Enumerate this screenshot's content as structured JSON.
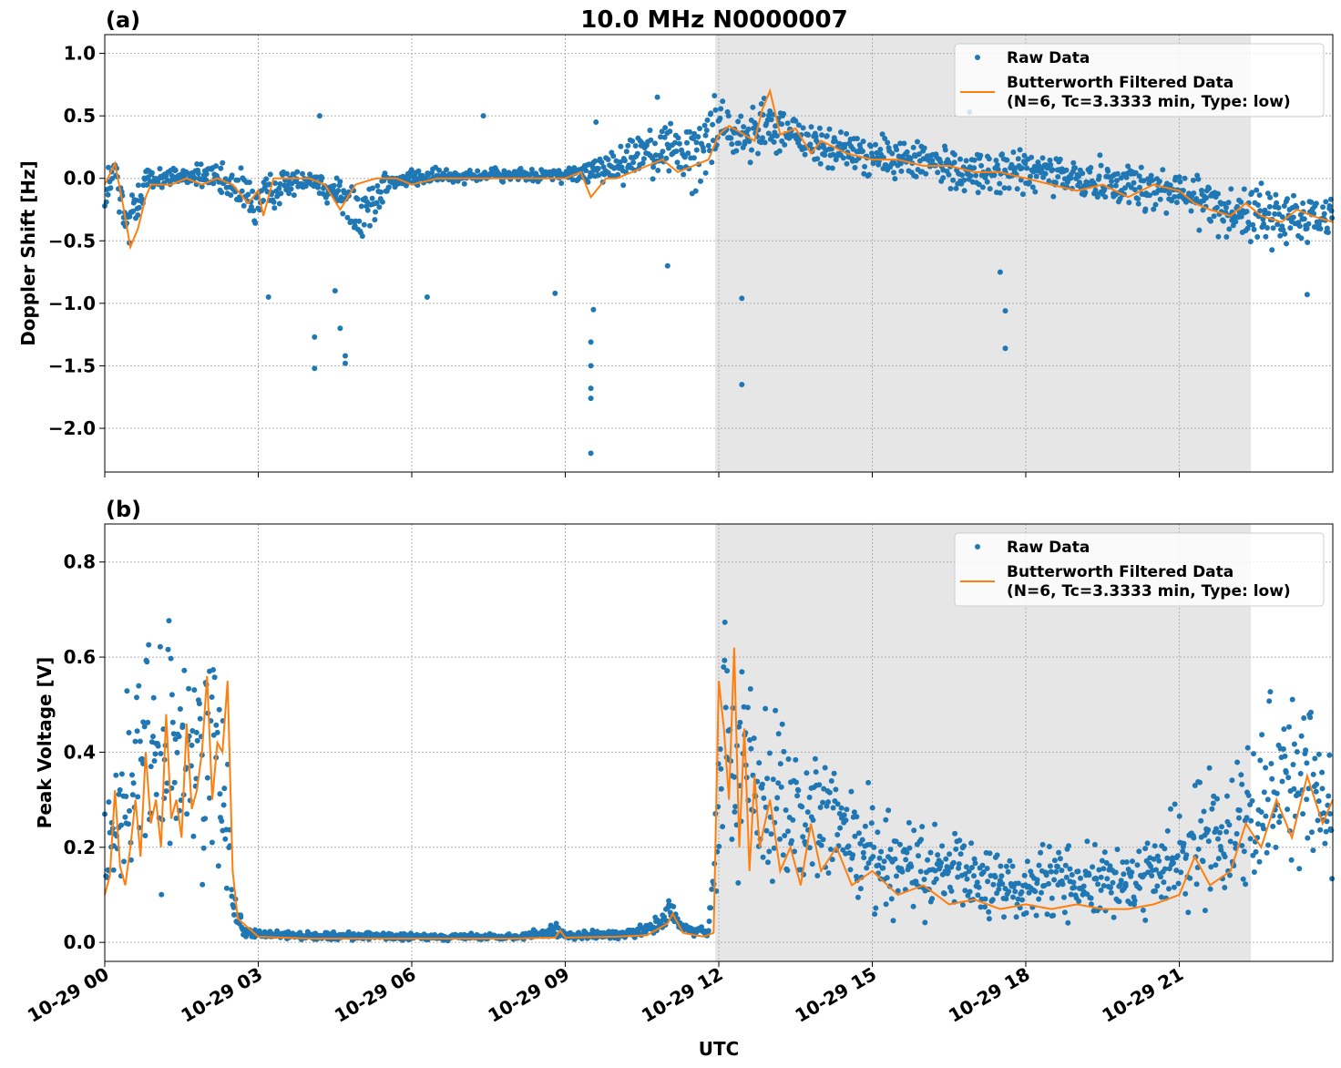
{
  "figure": {
    "title": "10.0 MHz N0000007",
    "xlabel": "UTC"
  },
  "colors": {
    "raw": "#1f77b4",
    "filtered": "#ff7f0e",
    "shade": "#e6e6e6",
    "grid": "#b0b0b0"
  },
  "chart_data": [
    {
      "type": "scatter",
      "panel_label": "(a)",
      "ylabel": "Doppler Shift [Hz]",
      "xlim": [
        0,
        24
      ],
      "ylim": [
        -2.35,
        1.15
      ],
      "yticks": [
        1.0,
        0.5,
        0.0,
        -0.5,
        -1.0,
        -1.5,
        -2.0
      ],
      "ytick_labels": [
        "1.0",
        "0.5",
        "0.0",
        "−0.5",
        "−1.0",
        "−1.5",
        "−2.0"
      ],
      "shaded_interval_hours": [
        11.93,
        22.4
      ],
      "grid": true,
      "legend_position": "top-right",
      "legend": [
        "Raw Data",
        "Butterworth Filtered Data",
        "(N=6, Tc=3.3333 min, Type: low)"
      ],
      "series": [
        {
          "name": "Raw Data",
          "style": "dots",
          "band_x_hours": [
            0,
            0.2,
            0.4,
            0.6,
            0.8,
            1.0,
            1.5,
            2.0,
            2.5,
            3.0,
            3.5,
            4.0,
            4.5,
            5.0,
            5.5,
            6.0,
            7.0,
            8.0,
            9.0,
            9.5,
            10.0,
            10.5,
            11.0,
            11.5,
            12.0,
            12.5,
            13.0,
            13.5,
            14.0,
            15.0,
            16.0,
            17.0,
            18.0,
            19.0,
            20.0,
            21.0,
            22.0,
            23.0,
            24.0
          ],
          "band_low": [
            -0.5,
            -0.1,
            -0.8,
            -0.5,
            -0.2,
            -0.1,
            -0.1,
            -0.1,
            -0.3,
            -0.5,
            -0.2,
            -0.1,
            -0.3,
            -0.7,
            -0.2,
            -0.1,
            -0.05,
            -0.05,
            -0.05,
            -0.1,
            -0.1,
            -0.05,
            -0.1,
            -0.25,
            0.1,
            0.1,
            0.1,
            0.1,
            0.0,
            -0.05,
            -0.1,
            -0.2,
            -0.2,
            -0.25,
            -0.3,
            -0.4,
            -0.55,
            -0.65,
            -0.6
          ],
          "band_high": [
            0.2,
            0.25,
            0.0,
            0.1,
            0.15,
            0.1,
            0.15,
            0.15,
            0.15,
            0.1,
            0.1,
            0.1,
            0.1,
            0.1,
            0.1,
            0.1,
            0.1,
            0.1,
            0.1,
            0.2,
            0.3,
            0.5,
            0.6,
            0.6,
            0.8,
            0.55,
            0.8,
            0.6,
            0.5,
            0.4,
            0.35,
            0.3,
            0.3,
            0.25,
            0.2,
            0.15,
            0.05,
            0.0,
            0.0
          ],
          "outliers": [
            [
              4.1,
              -1.52
            ],
            [
              4.1,
              -1.27
            ],
            [
              4.2,
              0.5
            ],
            [
              4.6,
              -1.2
            ],
            [
              4.7,
              -1.42
            ],
            [
              4.7,
              -1.48
            ],
            [
              4.5,
              -0.9
            ],
            [
              3.2,
              -0.95
            ],
            [
              6.3,
              -0.95
            ],
            [
              7.4,
              0.5
            ],
            [
              8.8,
              -0.92
            ],
            [
              9.5,
              -2.2
            ],
            [
              9.5,
              -1.76
            ],
            [
              9.5,
              -1.68
            ],
            [
              9.5,
              -1.5
            ],
            [
              9.5,
              -1.31
            ],
            [
              9.55,
              -1.05
            ],
            [
              9.6,
              0.45
            ],
            [
              12.45,
              -0.96
            ],
            [
              12.45,
              -1.65
            ],
            [
              17.6,
              -1.36
            ],
            [
              17.6,
              -1.06
            ],
            [
              17.5,
              -0.75
            ],
            [
              16.9,
              0.53
            ],
            [
              23.5,
              -0.93
            ],
            [
              11.0,
              -0.7
            ],
            [
              10.8,
              0.65
            ]
          ]
        },
        {
          "name": "Butterworth Filtered Data",
          "style": "line",
          "x_hours": [
            0,
            0.2,
            0.35,
            0.5,
            0.65,
            0.8,
            0.9,
            1.0,
            1.3,
            1.6,
            1.9,
            2.2,
            2.5,
            2.8,
            3.0,
            3.1,
            3.3,
            3.6,
            4.0,
            4.3,
            4.6,
            4.9,
            5.3,
            5.7,
            6.0,
            6.5,
            7.0,
            7.5,
            8.0,
            8.5,
            9.0,
            9.3,
            9.5,
            9.8,
            10.0,
            10.3,
            10.6,
            10.9,
            11.2,
            11.5,
            11.8,
            12.0,
            12.2,
            12.5,
            12.7,
            12.85,
            13.0,
            13.2,
            13.5,
            13.8,
            14.0,
            14.5,
            15.0,
            15.5,
            16.0,
            16.5,
            17.0,
            17.5,
            18.0,
            18.5,
            19.0,
            19.5,
            20.0,
            20.5,
            21.0,
            21.3,
            21.6,
            22.0,
            22.3,
            22.6,
            23.0,
            23.3,
            23.6,
            24.0
          ],
          "y": [
            -0.05,
            0.12,
            -0.2,
            -0.55,
            -0.4,
            -0.15,
            -0.05,
            -0.05,
            -0.05,
            0.0,
            -0.05,
            0.0,
            -0.05,
            -0.2,
            -0.1,
            -0.3,
            0.0,
            0.0,
            0.0,
            -0.05,
            -0.25,
            -0.05,
            0.0,
            0.0,
            -0.05,
            0.0,
            0.0,
            0.0,
            0.0,
            0.0,
            0.0,
            0.05,
            -0.15,
            0.0,
            0.0,
            0.05,
            0.1,
            0.15,
            0.05,
            0.1,
            0.15,
            0.35,
            0.42,
            0.35,
            0.3,
            0.55,
            0.7,
            0.35,
            0.4,
            0.2,
            0.3,
            0.2,
            0.15,
            0.15,
            0.1,
            0.1,
            0.05,
            0.05,
            0.0,
            -0.05,
            -0.1,
            -0.05,
            -0.15,
            -0.05,
            -0.1,
            -0.2,
            -0.25,
            -0.3,
            -0.2,
            -0.3,
            -0.35,
            -0.25,
            -0.3,
            -0.35
          ]
        }
      ]
    },
    {
      "type": "scatter",
      "panel_label": "(b)",
      "ylabel": "Peak Voltage [V]",
      "xlim": [
        0,
        24
      ],
      "ylim": [
        -0.04,
        0.88
      ],
      "yticks": [
        0.0,
        0.2,
        0.4,
        0.6,
        0.8
      ],
      "ytick_labels": [
        "0.0",
        "0.2",
        "0.4",
        "0.6",
        "0.8"
      ],
      "xticks_hours": [
        0,
        3,
        6,
        9,
        12,
        15,
        18,
        21
      ],
      "xtick_labels": [
        "10-29 00",
        "10-29 03",
        "10-29 06",
        "10-29 09",
        "10-29 12",
        "10-29 15",
        "10-29 18",
        "10-29 21"
      ],
      "shaded_interval_hours": [
        11.93,
        22.4
      ],
      "grid": true,
      "legend_position": "top-right",
      "legend": [
        "Raw Data",
        "Butterworth Filtered Data",
        "(N=6, Tc=3.3333 min, Type: low)"
      ],
      "series": [
        {
          "name": "Raw Data",
          "style": "dots",
          "band_x_hours": [
            0,
            0.3,
            0.6,
            0.8,
            1.0,
            1.2,
            1.4,
            1.6,
            1.8,
            2.0,
            2.2,
            2.4,
            2.5,
            2.7,
            3.0,
            4.0,
            5.0,
            6.0,
            7.0,
            8.0,
            8.8,
            9.0,
            10.0,
            10.8,
            11.0,
            11.3,
            11.8,
            11.95,
            12.1,
            12.3,
            12.6,
            13.0,
            13.5,
            14.0,
            14.5,
            15.0,
            16.0,
            17.0,
            18.0,
            19.0,
            20.0,
            20.8,
            21.2,
            21.6,
            22.0,
            22.4,
            22.8,
            23.2,
            23.6,
            24.0
          ],
          "band_low": [
            0.03,
            0.05,
            0.06,
            0.08,
            0.06,
            0.07,
            0.05,
            0.07,
            0.08,
            0.06,
            0.05,
            0.05,
            0.02,
            0.01,
            0.005,
            0.002,
            0.002,
            0.002,
            0.002,
            0.002,
            0.005,
            0.002,
            0.002,
            0.01,
            0.02,
            0.01,
            0.005,
            0.01,
            0.15,
            0.05,
            0.08,
            0.05,
            0.05,
            0.04,
            0.04,
            0.03,
            0.02,
            0.02,
            0.02,
            0.02,
            0.02,
            0.03,
            0.04,
            0.05,
            0.05,
            0.06,
            0.08,
            0.09,
            0.08,
            0.05
          ],
          "band_high": [
            0.3,
            0.55,
            0.6,
            0.75,
            0.62,
            0.7,
            0.8,
            0.7,
            0.65,
            0.8,
            0.65,
            0.6,
            0.15,
            0.04,
            0.03,
            0.025,
            0.025,
            0.02,
            0.02,
            0.02,
            0.045,
            0.025,
            0.03,
            0.06,
            0.11,
            0.05,
            0.03,
            0.45,
            0.8,
            0.65,
            0.72,
            0.55,
            0.5,
            0.45,
            0.45,
            0.35,
            0.28,
            0.25,
            0.22,
            0.25,
            0.22,
            0.3,
            0.35,
            0.42,
            0.45,
            0.5,
            0.6,
            0.65,
            0.55,
            0.47
          ]
        },
        {
          "name": "Butterworth Filtered Data",
          "style": "line",
          "x_hours": [
            0,
            0.1,
            0.2,
            0.3,
            0.4,
            0.5,
            0.6,
            0.7,
            0.8,
            0.9,
            1.0,
            1.1,
            1.2,
            1.3,
            1.4,
            1.5,
            1.6,
            1.7,
            1.8,
            1.9,
            2.0,
            2.1,
            2.2,
            2.3,
            2.4,
            2.5,
            2.6,
            3.0,
            4.0,
            5.0,
            6.0,
            7.0,
            8.0,
            8.8,
            8.9,
            9.0,
            10.0,
            10.6,
            11.0,
            11.1,
            11.3,
            11.7,
            11.9,
            12.0,
            12.1,
            12.2,
            12.3,
            12.4,
            12.5,
            12.6,
            12.7,
            12.8,
            13.0,
            13.2,
            13.4,
            13.6,
            13.8,
            14.0,
            14.3,
            14.6,
            15.0,
            15.5,
            16.0,
            16.5,
            17.0,
            17.5,
            18.0,
            18.5,
            19.0,
            19.5,
            20.0,
            20.5,
            21.0,
            21.3,
            21.6,
            22.0,
            22.3,
            22.6,
            22.9,
            23.2,
            23.5,
            23.8,
            24.0
          ],
          "y": [
            0.1,
            0.14,
            0.32,
            0.16,
            0.12,
            0.2,
            0.3,
            0.18,
            0.4,
            0.25,
            0.3,
            0.2,
            0.48,
            0.26,
            0.3,
            0.22,
            0.46,
            0.28,
            0.32,
            0.4,
            0.56,
            0.3,
            0.42,
            0.4,
            0.55,
            0.15,
            0.05,
            0.012,
            0.008,
            0.008,
            0.008,
            0.008,
            0.008,
            0.01,
            0.025,
            0.01,
            0.012,
            0.015,
            0.04,
            0.06,
            0.02,
            0.012,
            0.02,
            0.55,
            0.45,
            0.3,
            0.62,
            0.2,
            0.45,
            0.15,
            0.35,
            0.2,
            0.3,
            0.15,
            0.2,
            0.12,
            0.25,
            0.15,
            0.2,
            0.12,
            0.15,
            0.1,
            0.12,
            0.08,
            0.09,
            0.07,
            0.08,
            0.07,
            0.08,
            0.07,
            0.07,
            0.08,
            0.1,
            0.18,
            0.12,
            0.15,
            0.25,
            0.2,
            0.3,
            0.22,
            0.35,
            0.25,
            0.3
          ]
        }
      ]
    }
  ]
}
